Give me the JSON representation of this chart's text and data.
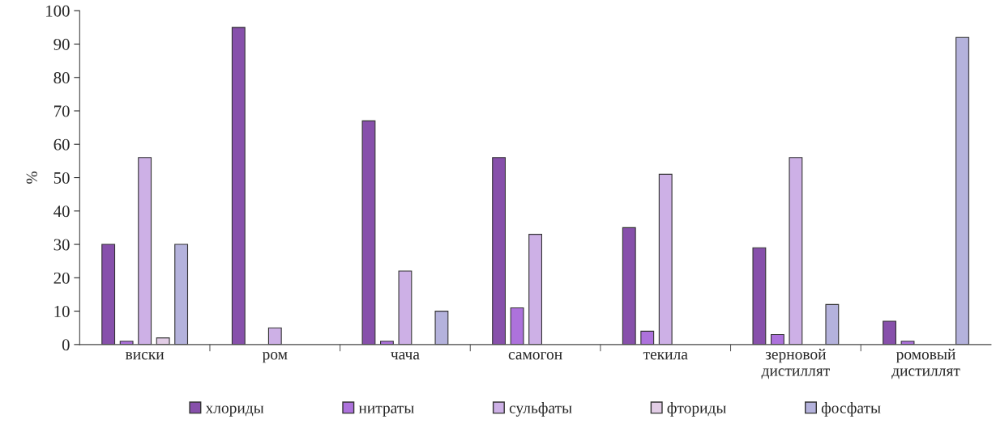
{
  "chart_data": {
    "type": "bar",
    "ylabel": "%",
    "categories": [
      "виски",
      "ром",
      "чача",
      "самогон",
      "текила",
      "зерновой\nдистиллят",
      "ромовый\nдистиллят"
    ],
    "series": [
      {
        "name": "хлориды",
        "color": "#8750ab",
        "values": [
          30,
          95,
          67,
          56,
          35,
          29,
          7
        ]
      },
      {
        "name": "нитраты",
        "color": "#ad72dc",
        "values": [
          1,
          null,
          1,
          11,
          4,
          3,
          1
        ]
      },
      {
        "name": "сульфаты",
        "color": "#cdb0e6",
        "values": [
          56,
          5,
          22,
          33,
          51,
          56,
          null
        ]
      },
      {
        "name": "фториды",
        "color": "#e2cde6",
        "values": [
          2,
          null,
          null,
          null,
          null,
          null,
          null
        ]
      },
      {
        "name": "фосфаты",
        "color": "#b4b2dc",
        "values": [
          30,
          null,
          10,
          null,
          null,
          12,
          92
        ]
      }
    ],
    "ylim": [
      0,
      100
    ],
    "yticks": [
      0,
      10,
      20,
      30,
      40,
      50,
      60,
      70,
      80,
      90,
      100
    ],
    "grid": false,
    "legend": "bottom"
  }
}
